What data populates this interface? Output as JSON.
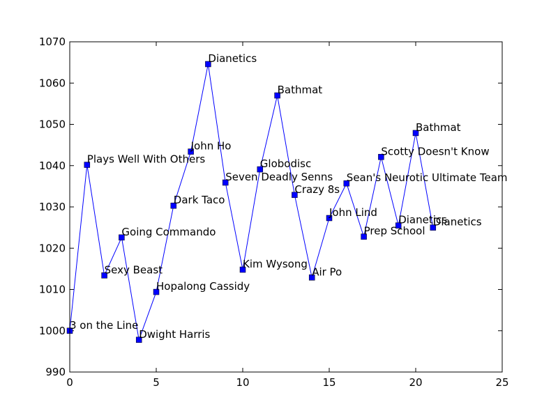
{
  "chart_data": {
    "type": "line",
    "title": "",
    "xlabel": "",
    "ylabel": "",
    "xlim": [
      0,
      25
    ],
    "ylim": [
      990,
      1070
    ],
    "xticks": [
      "0",
      "5",
      "10",
      "15",
      "20",
      "25"
    ],
    "yticks": [
      "990",
      "1000",
      "1010",
      "1020",
      "1030",
      "1040",
      "1050",
      "1060",
      "1070"
    ],
    "grid": false,
    "line_color": "#0000ff",
    "marker": "square",
    "series": [
      {
        "x": [
          0,
          1,
          2,
          3,
          4,
          5,
          6,
          7,
          8,
          9,
          10,
          11,
          12,
          13,
          14,
          15,
          16,
          17,
          18,
          19,
          20,
          21
        ],
        "values": [
          1000.0,
          1040.2,
          1013.4,
          1022.6,
          997.8,
          1009.4,
          1030.3,
          1043.4,
          1064.6,
          1035.9,
          1014.8,
          1039.1,
          1057.0,
          1032.9,
          1012.9,
          1027.3,
          1035.7,
          1022.8,
          1042.1,
          1025.5,
          1047.9,
          1025.0
        ],
        "labels": [
          "3 on the Line",
          "Plays Well With Others",
          "Sexy Beast",
          "Going Commando",
          "Dwight Harris",
          "Hopalong Cassidy",
          "Dark Taco",
          "John Ho",
          "Dianetics",
          "Seven Deadly Senns",
          "Kim Wysong",
          "Globodisc",
          "Bathmat",
          "Crazy 8s",
          "Air Po",
          "John Lind",
          "Sean's Neurotic Ultimate Team",
          "Prep School",
          "Scotty Doesn't Know",
          "Dianetics",
          "Bathmat",
          "Dianetics"
        ]
      }
    ]
  }
}
